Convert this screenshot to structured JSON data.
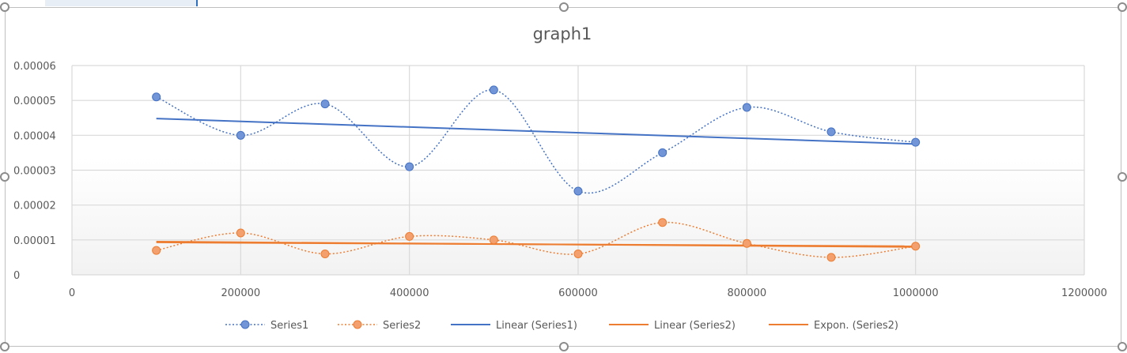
{
  "colors": {
    "series1": "#4472C4",
    "series1_fill": "#7295D8",
    "series2": "#ED7D31",
    "series2_fill": "#F4A06E",
    "gridline": "#d9d9d9",
    "text": "#595959",
    "plot_bg_top": "#ffffff",
    "plot_bg_bottom": "#f2f2f2"
  },
  "chart_data": {
    "type": "scatter",
    "title": "graph1",
    "xlabel": "",
    "ylabel": "",
    "xlim": [
      0,
      1200000
    ],
    "ylim": [
      0,
      6e-05
    ],
    "x_ticks": [
      "0",
      "200000",
      "400000",
      "600000",
      "800000",
      "1000000",
      "1200000"
    ],
    "y_ticks": [
      "0",
      "0.00001",
      "0.00002",
      "0.00003",
      "0.00004",
      "0.00005",
      "0.00006"
    ],
    "grid": true,
    "legend_position": "bottom",
    "smoothed_lines": true,
    "x": [
      100000,
      200000,
      300000,
      400000,
      500000,
      600000,
      700000,
      800000,
      900000,
      1000000
    ],
    "series": [
      {
        "name": "Series1",
        "values": [
          5.1e-05,
          4e-05,
          4.9e-05,
          3.1e-05,
          5.3e-05,
          2.4e-05,
          3.5e-05,
          4.8e-05,
          4.1e-05,
          3.8e-05
        ]
      },
      {
        "name": "Series2",
        "values": [
          7e-06,
          1.2e-05,
          6e-06,
          1.1e-05,
          1e-05,
          6e-06,
          1.5e-05,
          9e-06,
          5e-06,
          8.2e-06
        ]
      }
    ],
    "trendlines": [
      {
        "name": "Linear (Series1)",
        "type": "linear",
        "series": "Series1",
        "x_range": [
          100000,
          1000000
        ],
        "y_range": [
          4.48e-05,
          3.75e-05
        ]
      },
      {
        "name": "Linear (Series2)",
        "type": "linear",
        "series": "Series2",
        "x_range": [
          100000,
          1000000
        ],
        "y_range": [
          9.3e-06,
          8.2e-06
        ]
      },
      {
        "name": "Expon. (Series2)",
        "type": "exponential",
        "series": "Series2",
        "x_range": [
          100000,
          1000000
        ],
        "y_range": [
          9.5e-06,
          8e-06
        ]
      }
    ]
  },
  "legend": {
    "items": [
      {
        "label": "Series1",
        "kind": "marker-line",
        "color": "#4472C4",
        "fill": "#7295D8"
      },
      {
        "label": "Series2",
        "kind": "marker-line",
        "color": "#ED7D31",
        "fill": "#F4A06E"
      },
      {
        "label": "Linear (Series1)",
        "kind": "solid-line",
        "color": "#4472C4"
      },
      {
        "label": "Linear (Series2)",
        "kind": "solid-line",
        "color": "#ED7D31"
      },
      {
        "label": "Expon. (Series2)",
        "kind": "solid-line",
        "color": "#ED7D31"
      }
    ]
  }
}
